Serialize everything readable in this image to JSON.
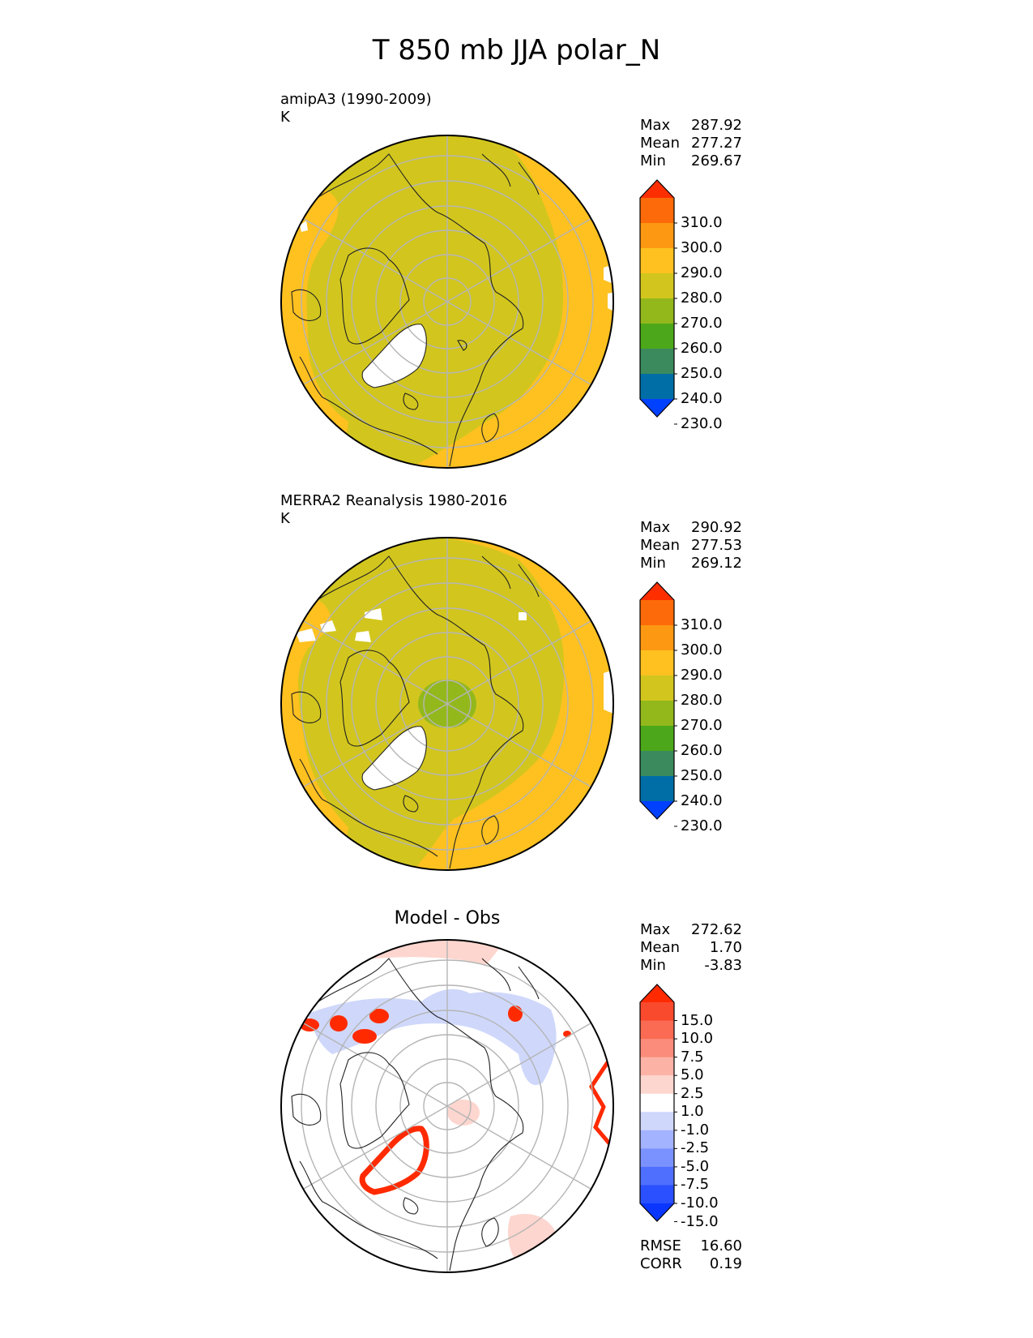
{
  "title": "T 850 mb JJA polar_N",
  "panels": [
    {
      "title_line1": "amipA3 (1990-2009)",
      "title_line2": "K",
      "stats": [
        {
          "label": "Max",
          "value": "287.92"
        },
        {
          "label": "Mean",
          "value": "277.27"
        },
        {
          "label": "Min",
          "value": "269.67"
        }
      ],
      "colorbar_ticks": [
        "310.0",
        "300.0",
        "290.0",
        "280.0",
        "270.0",
        "260.0",
        "250.0",
        "240.0",
        "230.0"
      ]
    },
    {
      "title_line1": "MERRA2 Reanalysis 1980-2016",
      "title_line2": "K",
      "stats": [
        {
          "label": "Max",
          "value": "290.92"
        },
        {
          "label": "Mean",
          "value": "277.53"
        },
        {
          "label": "Min",
          "value": "269.12"
        }
      ],
      "colorbar_ticks": [
        "310.0",
        "300.0",
        "290.0",
        "280.0",
        "270.0",
        "260.0",
        "250.0",
        "240.0",
        "230.0"
      ]
    },
    {
      "title": "Model - Obs",
      "stats": [
        {
          "label": "Max",
          "value": "272.62"
        },
        {
          "label": "Mean",
          "value": "1.70"
        },
        {
          "label": "Min",
          "value": "-3.83"
        }
      ],
      "colorbar_ticks": [
        "15.0",
        "10.0",
        "7.5",
        "5.0",
        "2.5",
        "1.0",
        "-1.0",
        "-2.5",
        "-5.0",
        "-7.5",
        "-10.0",
        "-15.0"
      ],
      "metrics": [
        {
          "label": "RMSE",
          "value": "16.60"
        },
        {
          "label": "CORR",
          "value": "0.19"
        }
      ]
    }
  ],
  "chart_data": [
    {
      "type": "heatmap",
      "projection": "north polar stereographic",
      "field": "T 850 mb JJA",
      "units": "K",
      "stats": {
        "max": 287.92,
        "mean": 277.27,
        "min": 269.67
      },
      "colorbar": {
        "levels": [
          230,
          240,
          250,
          260,
          270,
          280,
          290,
          300,
          310
        ],
        "colors": [
          "#0040ff",
          "#006ea6",
          "#3a8a5e",
          "#4ca81a",
          "#93b81c",
          "#d2c61e",
          "#fec120",
          "#fd9812",
          "#fd6a09",
          "#fe2e00"
        ],
        "extend": "both"
      },
      "regions": [
        {
          "description": "land and Arctic Ocean",
          "range": "270-280 K",
          "color": "#d2c61e"
        },
        {
          "description": "outer band over ocean and southern land",
          "range": "280-290 K",
          "color": "#fec120"
        },
        {
          "description": "Greenland",
          "value": "missing (below 850 mb surface)",
          "color": "#ffffff"
        }
      ]
    },
    {
      "type": "heatmap",
      "projection": "north polar stereographic",
      "field": "T 850 mb JJA",
      "units": "K",
      "stats": {
        "max": 290.92,
        "mean": 277.53,
        "min": 269.12
      },
      "colorbar": {
        "levels": [
          230,
          240,
          250,
          260,
          270,
          280,
          290,
          300,
          310
        ],
        "colors": [
          "#0040ff",
          "#006ea6",
          "#3a8a5e",
          "#4ca81a",
          "#93b81c",
          "#d2c61e",
          "#fec120",
          "#fd9812",
          "#fd6a09",
          "#fe2e00"
        ],
        "extend": "both"
      },
      "regions": [
        {
          "description": "north pole cap",
          "range": "260-270 K",
          "color": "#93b81c"
        },
        {
          "description": "land and Arctic Ocean",
          "range": "270-280 K",
          "color": "#d2c61e"
        },
        {
          "description": "outer band",
          "range": "280-290 K",
          "color": "#fec120"
        },
        {
          "description": "Greenland and Tibet",
          "value": "missing",
          "color": "#ffffff"
        }
      ]
    },
    {
      "type": "heatmap",
      "projection": "north polar stereographic",
      "field": "Model - Obs",
      "stats": {
        "max": 272.62,
        "mean": 1.7,
        "min": -3.83
      },
      "metrics": {
        "rmse": 16.6,
        "corr": 0.19
      },
      "colorbar": {
        "levels": [
          -15.0,
          -10.0,
          -7.5,
          -5.0,
          -2.5,
          -1.0,
          1.0,
          2.5,
          5.0,
          7.5,
          10.0,
          15.0
        ],
        "colors": [
          "#0a36ff",
          "#2a50ff",
          "#4f6fff",
          "#7a92ff",
          "#a4b3ff",
          "#cfd8fb",
          "#ffffff",
          "#fdd6cf",
          "#fcb3a6",
          "#fb8b7a",
          "#fb6a52",
          "#fa4a2e",
          "#ff2a00"
        ],
        "extend": "both"
      },
      "regions": [
        {
          "description": "northern Eurasia band",
          "range": "-1.0 to -2.5",
          "color": "#cfd8fb"
        },
        {
          "description": "Pacific edge and North Atlantic patches",
          "range": "1.0 to 2.5",
          "color": "#fdd6cf"
        },
        {
          "description": "Greenland edge and Himalaya/Tibet edges",
          "range": "> 15.0",
          "color": "#ff2a00"
        }
      ]
    }
  ]
}
